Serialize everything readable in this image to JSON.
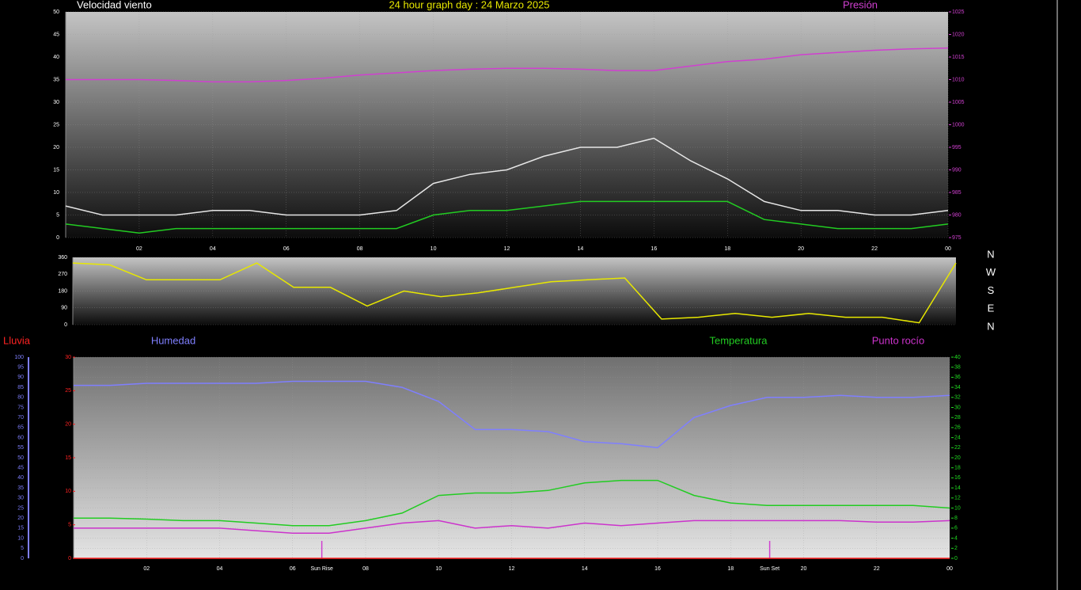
{
  "chart_data": [
    {
      "type": "line",
      "title": "24 hour graph day : 24 Marzo 2025",
      "x": [
        0,
        1,
        2,
        3,
        4,
        5,
        6,
        7,
        8,
        9,
        10,
        11,
        12,
        13,
        14,
        15,
        16,
        17,
        18,
        19,
        20,
        21,
        22,
        23,
        24
      ],
      "xlim": [
        0,
        24
      ],
      "xticks": [
        {
          "value": 2,
          "label": "02"
        },
        {
          "value": 4,
          "label": "04"
        },
        {
          "value": 6,
          "label": "06"
        },
        {
          "value": 8,
          "label": "08"
        },
        10,
        12,
        14,
        16,
        18,
        20,
        22,
        {
          "value": 24,
          "label": "00"
        }
      ],
      "ylim": [
        0,
        50
      ],
      "yticks": [
        0,
        5,
        10,
        15,
        20,
        25,
        30,
        35,
        40,
        45,
        50
      ],
      "y2lim": [
        975,
        1025
      ],
      "y2ticks": [
        975,
        980,
        985,
        990,
        995,
        1000,
        1005,
        1010,
        1015,
        1020,
        1025
      ],
      "axis_colors": {
        "y": "#ffffff",
        "y2": "#d040d0"
      },
      "grid": true,
      "series": [
        {
          "name": "Velocidad viento",
          "color": "#e6e6e6",
          "values": [
            7,
            5,
            5,
            5,
            6,
            6,
            5,
            5,
            5,
            6,
            12,
            14,
            15,
            18,
            20,
            20,
            22,
            17,
            13,
            8,
            6,
            6,
            5,
            5,
            6
          ]
        },
        {
          "color": "#22cc22",
          "values": [
            3,
            2,
            1,
            2,
            2,
            2,
            2,
            2,
            2,
            2,
            5,
            6,
            6,
            7,
            8,
            8,
            8,
            8,
            8,
            4,
            3,
            2,
            2,
            2,
            3
          ]
        },
        {
          "name": "Presión",
          "color": "#d040d0",
          "axis": "y2",
          "values": [
            1010,
            1010,
            1010,
            1009.8,
            1009.5,
            1009.5,
            1009.8,
            1010.3,
            1011,
            1011.5,
            1012,
            1012.3,
            1012.5,
            1012.5,
            1012.3,
            1012,
            1012,
            1013,
            1014,
            1014.5,
            1015.5,
            1016,
            1016.5,
            1016.8,
            1017
          ]
        }
      ]
    },
    {
      "type": "line",
      "x": [
        0,
        1,
        2,
        3,
        4,
        5,
        6,
        7,
        8,
        9,
        10,
        11,
        12,
        13,
        14,
        15,
        16,
        17,
        18,
        19,
        20,
        21,
        22,
        23,
        24
      ],
      "xlim": [
        0,
        24
      ],
      "ylim": [
        0,
        360
      ],
      "yticks": [
        0,
        90,
        180,
        270,
        360
      ],
      "axis_colors": {
        "y": "#ffffff"
      },
      "grid": true,
      "direction_labels": [
        "N",
        "W",
        "S",
        "E",
        "N"
      ],
      "series": [
        {
          "color": "#e8e800",
          "values": [
            330,
            320,
            240,
            240,
            240,
            330,
            200,
            200,
            100,
            180,
            150,
            170,
            200,
            230,
            240,
            250,
            30,
            40,
            60,
            40,
            60,
            40,
            40,
            10,
            330
          ]
        }
      ]
    },
    {
      "type": "line",
      "x": [
        0,
        1,
        2,
        3,
        4,
        5,
        6,
        7,
        8,
        9,
        10,
        11,
        12,
        13,
        14,
        15,
        16,
        17,
        18,
        19,
        20,
        21,
        22,
        23,
        24
      ],
      "xlim": [
        0,
        24
      ],
      "xticks": [
        {
          "value": 2,
          "label": "02"
        },
        {
          "value": 4,
          "label": "04"
        },
        {
          "value": 6,
          "label": "06"
        },
        {
          "value": 8,
          "label": "08"
        },
        10,
        12,
        14,
        16,
        18,
        20,
        22,
        {
          "value": 24,
          "label": "00"
        }
      ],
      "ylim": [
        0,
        100
      ],
      "yticks": [
        0,
        5,
        10,
        15,
        20,
        25,
        30,
        35,
        40,
        45,
        50,
        55,
        60,
        65,
        70,
        75,
        80,
        85,
        90,
        95,
        100
      ],
      "y2lim": [
        0,
        40
      ],
      "y2ticks": [
        0,
        2,
        4,
        6,
        8,
        10,
        12,
        14,
        16,
        18,
        20,
        22,
        24,
        26,
        28,
        30,
        32,
        34,
        36,
        38,
        40
      ],
      "y3lim": [
        0,
        30
      ],
      "y3ticks": [
        0,
        5,
        10,
        15,
        20,
        25,
        30
      ],
      "axis_colors": {
        "y": "#7f7fff",
        "y2": "#22dd22",
        "y3": "#ff2222"
      },
      "grid": true,
      "annotations": [
        {
          "label": "Sun Rise",
          "x": 6.8
        },
        {
          "label": "Sun Set",
          "x": 19.07
        }
      ],
      "series": [
        {
          "name": "Lluvia",
          "color": "#ff2222",
          "axis": "y3",
          "values": [
            0,
            0,
            0,
            0,
            0,
            0,
            0,
            0,
            0,
            0,
            0,
            0,
            0,
            0,
            0,
            0,
            0,
            0,
            0,
            0,
            0,
            0,
            0,
            0,
            0
          ]
        },
        {
          "name": "Humedad",
          "color": "#7f7fff",
          "values": [
            86,
            86,
            87,
            87,
            87,
            87,
            88,
            88,
            88,
            85,
            78,
            64,
            64,
            63,
            58,
            57,
            55,
            70,
            76,
            80,
            80,
            81,
            80,
            80,
            81
          ]
        },
        {
          "name": "Temperatura",
          "color": "#22cc22",
          "axis": "y2",
          "values": [
            8,
            8,
            7.8,
            7.5,
            7.5,
            7,
            6.5,
            6.5,
            7.5,
            9,
            12.5,
            13,
            13,
            13.5,
            15,
            15.5,
            15.5,
            12.5,
            11,
            10.5,
            10.5,
            10.5,
            10.5,
            10.5,
            10
          ]
        },
        {
          "name": "Punto rocío",
          "color": "#cc33cc",
          "axis": "y2",
          "values": [
            6,
            6,
            6,
            6,
            6,
            5.5,
            5,
            5,
            6,
            7,
            7.5,
            6,
            6.5,
            6,
            7,
            6.5,
            7,
            7.5,
            7.5,
            7.5,
            7.5,
            7.5,
            7.2,
            7.2,
            7.5
          ]
        }
      ]
    }
  ]
}
